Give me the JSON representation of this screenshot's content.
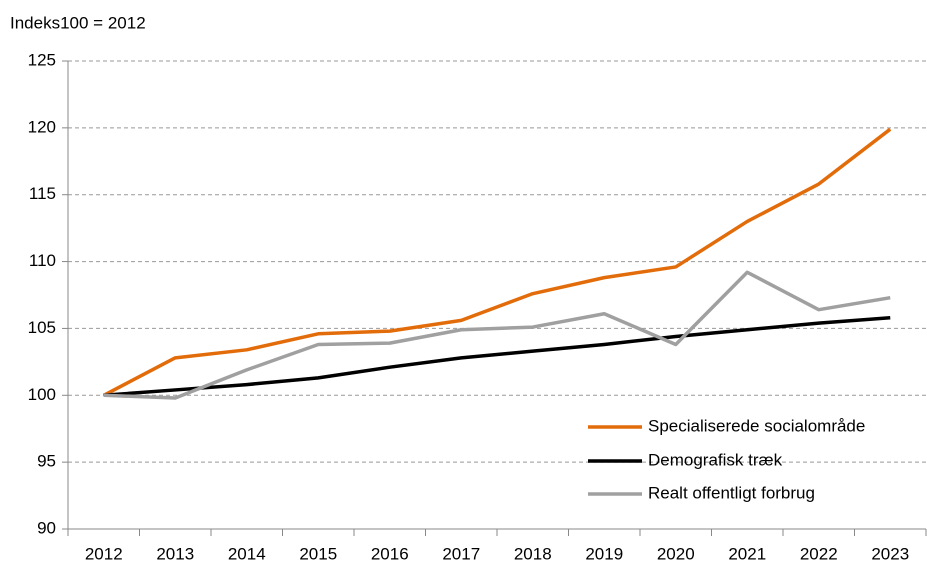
{
  "chart_data": {
    "type": "line",
    "ylabel": "Indeks100 = 2012",
    "categories": [
      "2012",
      "2013",
      "2014",
      "2015",
      "2016",
      "2017",
      "2018",
      "2019",
      "2020",
      "2021",
      "2022",
      "2023"
    ],
    "series": [
      {
        "name": "Specialiserede socialområde",
        "color": "#e36c0a",
        "values": [
          100,
          102.8,
          103.4,
          104.6,
          104.8,
          105.6,
          107.6,
          108.8,
          109.6,
          113.0,
          115.8,
          119.9
        ]
      },
      {
        "name": "Demografisk træk",
        "color": "#000000",
        "values": [
          100,
          100.4,
          100.8,
          101.3,
          102.1,
          102.8,
          103.3,
          103.8,
          104.4,
          104.9,
          105.4,
          105.8
        ]
      },
      {
        "name": "Realt offentligt forbrug",
        "color": "#a0a0a0",
        "values": [
          100,
          99.8,
          101.9,
          103.8,
          103.9,
          104.9,
          105.1,
          106.1,
          103.8,
          109.2,
          106.4,
          107.3
        ]
      }
    ],
    "ylim": [
      90,
      125
    ],
    "yticks": [
      90,
      95,
      100,
      105,
      110,
      115,
      120,
      125
    ],
    "grid": true,
    "legend": "lower right"
  }
}
